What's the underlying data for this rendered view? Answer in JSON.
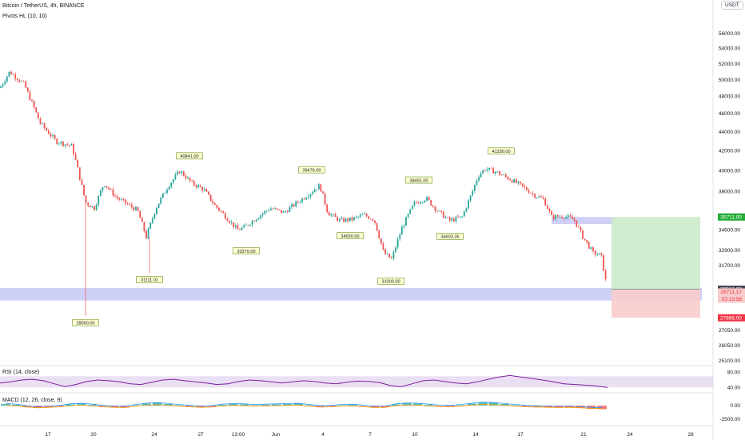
{
  "header": {
    "title": "Bitcoin / TetherUS, 4h, BINANCE",
    "indicator": "Pivots HL (10, 10)",
    "currency_button": "USDT",
    "currency_top_tick": "6"
  },
  "rsi_label": "RSI (14, close)",
  "macd_label": "MACD (12, 26, close, 9)",
  "colors": {
    "up": "#26a69a",
    "down": "#ef5350",
    "rsi": "#7e1f9a",
    "rsi_band": "#e1d3f0",
    "support_zone": "#c5c8f5",
    "profit_zone": "#cbebcb",
    "loss_zone": "#f8cccc",
    "pivot_label_bg": "#ffffd0",
    "pivot_label_border": "#6b8e23",
    "macd_line": "#2196f3",
    "signal_line": "#ff9800",
    "tp_badge": "#22ab36",
    "sl_badge": "#f23645",
    "price_badge": "#434651"
  },
  "chart_data": {
    "type": "candlestick",
    "symbol": "Bitcoin / TetherUS",
    "interval": "4h",
    "y_scale": "log",
    "price_axis_ticks": [
      "56000.00",
      "54000.00",
      "52000.00",
      "50000.00",
      "48000.00",
      "46000.00",
      "44000.00",
      "42000.00",
      "40000.00",
      "38000.00",
      "35711.00",
      "34600.00",
      "32900.00",
      "31700.00",
      "29913.00",
      "29711.17",
      "27888.00",
      "27050.00",
      "26050.00",
      "25100.00"
    ],
    "x_ticks": [
      "17",
      "20",
      "24",
      "27",
      "13:00",
      "Jun",
      "4",
      "7",
      "10",
      "14",
      "17",
      "21",
      "24",
      "28"
    ],
    "close_path": [
      [
        0,
        49000
      ],
      [
        12,
        51000
      ],
      [
        30,
        49500
      ],
      [
        50,
        45000
      ],
      [
        70,
        43000
      ],
      [
        90,
        42500
      ],
      [
        107,
        37000
      ],
      [
        118,
        36500
      ],
      [
        130,
        38800
      ],
      [
        145,
        37500
      ],
      [
        160,
        36800
      ],
      [
        172,
        36300
      ],
      [
        183,
        34000
      ],
      [
        195,
        36500
      ],
      [
        210,
        38500
      ],
      [
        225,
        40000
      ],
      [
        240,
        38800
      ],
      [
        255,
        38200
      ],
      [
        268,
        36800
      ],
      [
        283,
        35700
      ],
      [
        297,
        34600
      ],
      [
        305,
        34800
      ],
      [
        320,
        35600
      ],
      [
        338,
        36500
      ],
      [
        355,
        36100
      ],
      [
        370,
        36900
      ],
      [
        385,
        37700
      ],
      [
        400,
        38600
      ],
      [
        410,
        36100
      ],
      [
        425,
        35400
      ],
      [
        440,
        35500
      ],
      [
        455,
        35900
      ],
      [
        468,
        35500
      ],
      [
        480,
        32700
      ],
      [
        490,
        32200
      ],
      [
        503,
        34800
      ],
      [
        518,
        36900
      ],
      [
        533,
        37400
      ],
      [
        548,
        36200
      ],
      [
        562,
        35400
      ],
      [
        578,
        35700
      ],
      [
        590,
        37800
      ],
      [
        598,
        39500
      ],
      [
        607,
        40200
      ],
      [
        620,
        39900
      ],
      [
        638,
        39200
      ],
      [
        655,
        38400
      ],
      [
        668,
        37700
      ],
      [
        680,
        37300
      ],
      [
        690,
        35700
      ],
      [
        705,
        35800
      ],
      [
        718,
        35500
      ],
      [
        730,
        33900
      ],
      [
        742,
        32700
      ],
      [
        752,
        32500
      ],
      [
        760,
        29711.17
      ]
    ],
    "pivot_highs": [
      {
        "x": 237,
        "price": "40841.00"
      },
      {
        "x": 390,
        "price": "39476.00"
      },
      {
        "x": 524,
        "price": "38491.00"
      },
      {
        "x": 627,
        "price": "41330.00"
      }
    ],
    "pivot_lows": [
      {
        "x": 107,
        "price": "28000.00"
      },
      {
        "x": 187,
        "price": "31111.01"
      },
      {
        "x": 308,
        "price": "33379.00"
      },
      {
        "x": 438,
        "price": "34650.00"
      },
      {
        "x": 489,
        "price": "31000.00"
      },
      {
        "x": 563,
        "price": "34603.36"
      }
    ],
    "support_zone": {
      "low": 29100,
      "high": 30000
    },
    "resistance_zone_upper": {
      "low": 35100,
      "high": 35711
    },
    "position": {
      "entry": 29913.0,
      "take_profit": 35711.0,
      "stop_loss": 27888.0
    },
    "price_badges": [
      {
        "label": "35711.00",
        "kind": "tp"
      },
      {
        "label": "29913.00",
        "kind": "entry"
      },
      {
        "label": "29711.17",
        "kind": "last"
      },
      {
        "label": "03:19:58",
        "kind": "countdown"
      },
      {
        "label": "27888.00",
        "kind": "sl"
      }
    ],
    "rsi": {
      "levels": [
        "80.00",
        "40.00"
      ],
      "band": [
        40,
        70
      ],
      "values": [
        52,
        55,
        60,
        62,
        58,
        50,
        42,
        48,
        56,
        60,
        58,
        55,
        50,
        48,
        54,
        60,
        62,
        58,
        55,
        52,
        48,
        50,
        56,
        60,
        58,
        55,
        52,
        55,
        58,
        56,
        52,
        50,
        54,
        57,
        56,
        53,
        45,
        42,
        50,
        58,
        60,
        56,
        52,
        50,
        55,
        62,
        68,
        72,
        68,
        64,
        60,
        55,
        50,
        48,
        46,
        44,
        40
      ]
    },
    "macd": {
      "levels": [
        "0.00",
        "-2500.00"
      ],
      "histogram": [
        0.4,
        0.2,
        -0.3,
        -0.6,
        -0.4,
        -0.2,
        0.3,
        0.5,
        0.2,
        -0.2,
        -0.4,
        -0.5,
        0.1,
        0.5,
        0.7,
        0.4,
        0.1,
        -0.2,
        -0.4,
        -0.3,
        0.2,
        0.4,
        0.3,
        0.1,
        0.2,
        0.3,
        0.4,
        0.5,
        0.1,
        -0.3,
        -0.2,
        0.1,
        0.2,
        -0.1,
        -0.5,
        -0.4,
        0.3,
        0.6,
        0.5,
        0.2,
        -0.1,
        -0.2,
        0.1,
        0.5,
        0.8,
        0.7,
        0.4,
        0.1,
        -0.2,
        -0.3,
        -0.4,
        -0.5,
        -0.4,
        -0.6,
        -0.8,
        -0.9
      ]
    }
  }
}
